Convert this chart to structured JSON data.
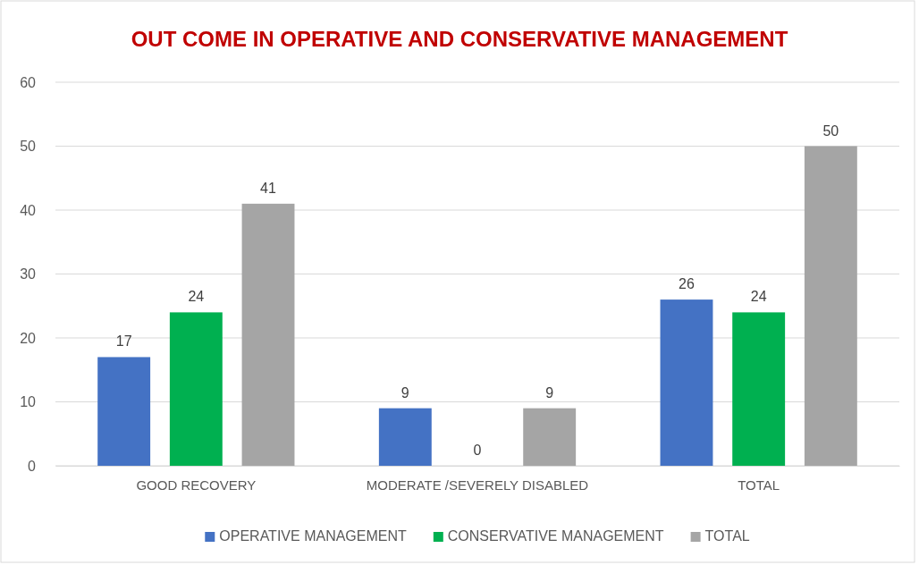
{
  "chart_data": {
    "type": "bar",
    "title": "OUT COME IN OPERATIVE AND CONSERVATIVE MANAGEMENT",
    "categories": [
      "GOOD RECOVERY",
      "MODERATE /SEVERELY DISABLED",
      "TOTAL"
    ],
    "series": [
      {
        "name": "OPERATIVE MANAGEMENT",
        "color": "#4472c4",
        "values": [
          17,
          9,
          26
        ]
      },
      {
        "name": "CONSERVATIVE MANAGEMENT",
        "color": "#00b050",
        "values": [
          24,
          0,
          24
        ]
      },
      {
        "name": "TOTAL",
        "color": "#a5a5a5",
        "values": [
          41,
          9,
          50
        ]
      }
    ],
    "ylim": [
      0,
      60
    ],
    "yticks": [
      0,
      10,
      20,
      30,
      40,
      50,
      60
    ],
    "grid": "y",
    "legend": "bottom",
    "data_labels": true
  }
}
